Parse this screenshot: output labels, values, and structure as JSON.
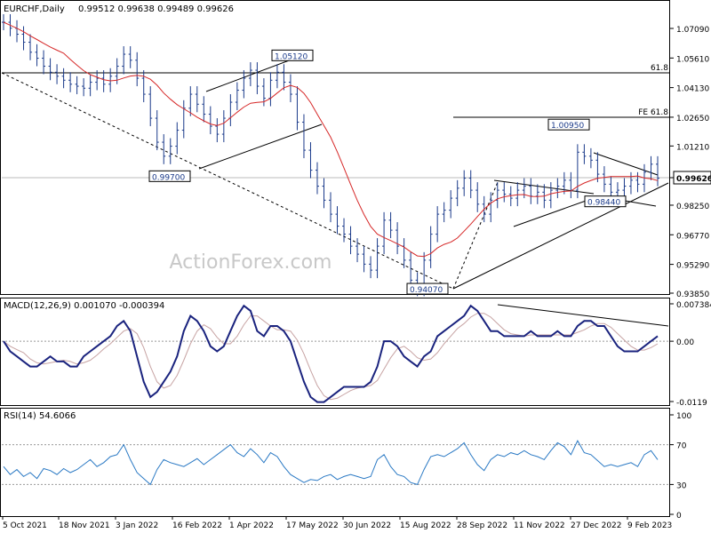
{
  "chart_data": {
    "type": "line",
    "title": "EURCHF,Daily",
    "ohlc": "0.99512 0.99638 0.99489 0.99626",
    "watermark": "ActionForex.com",
    "price_ticks": [
      "1.07090",
      "1.05610",
      "1.04130",
      "1.02650",
      "1.01210",
      "0.99626",
      "0.98250",
      "0.96770",
      "0.95290",
      "0.93850"
    ],
    "price_tick_values": [
      1.0709,
      1.0561,
      1.0413,
      1.0265,
      1.0121,
      0.99626,
      0.9825,
      0.9677,
      0.9529,
      0.9385
    ],
    "last_price": "0.99626",
    "fib_labels": [
      "61.8",
      "FE 61.8"
    ],
    "price_labels": [
      {
        "text": "1.05120",
        "value": 1.0512
      },
      {
        "text": "0.99700",
        "value": 0.997
      },
      {
        "text": "0.94070",
        "value": 0.9407
      },
      {
        "text": "1.00950",
        "value": 1.0095
      },
      {
        "text": "0.98440",
        "value": 0.9844
      }
    ],
    "date_labels": [
      "5 Oct 2021",
      "18 Nov 2021",
      "3 Jan 2022",
      "16 Feb 2022",
      "1 Apr 2022",
      "17 May 2022",
      "30 Jun 2022",
      "15 Aug 2022",
      "28 Sep 2022",
      "11 Nov 2022",
      "27 Dec 2022",
      "9 Feb 2023"
    ],
    "close": [
      1.074,
      1.071,
      1.068,
      1.064,
      1.059,
      1.056,
      1.052,
      1.049,
      1.047,
      1.045,
      1.043,
      1.042,
      1.041,
      1.044,
      1.046,
      1.043,
      1.047,
      1.052,
      1.058,
      1.055,
      1.046,
      1.038,
      1.026,
      1.014,
      1.007,
      1.012,
      1.02,
      1.031,
      1.038,
      1.033,
      1.028,
      1.022,
      1.018,
      1.026,
      1.034,
      1.04,
      1.046,
      1.05,
      1.042,
      1.036,
      1.045,
      1.049,
      1.044,
      1.038,
      1.024,
      1.01,
      1.0,
      0.992,
      0.985,
      0.978,
      0.972,
      0.968,
      0.962,
      0.958,
      0.953,
      0.95,
      0.962,
      0.975,
      0.97,
      0.962,
      0.955,
      0.945,
      0.941,
      0.955,
      0.968,
      0.978,
      0.98,
      0.986,
      0.991,
      0.996,
      0.99,
      0.983,
      0.978,
      0.985,
      0.99,
      0.988,
      0.986,
      0.99,
      0.992,
      0.987,
      0.989,
      0.985,
      0.99,
      0.992,
      0.995,
      0.99,
      1.009,
      1.007,
      1.005,
      0.998,
      0.993,
      0.989,
      0.99,
      0.992,
      0.995,
      0.993,
      0.999,
      1.003,
      0.996
    ],
    "macd": {
      "label": "MACD(12,26,9) 0.001070 -0.000394",
      "ticks": [
        "0.007384",
        "0.00",
        "-0.0119"
      ],
      "tick_values": [
        0.007384,
        0.0,
        -0.0119
      ],
      "main": [
        0.0,
        -0.002,
        -0.003,
        -0.004,
        -0.005,
        -0.005,
        -0.004,
        -0.003,
        -0.004,
        -0.004,
        -0.005,
        -0.005,
        -0.003,
        -0.002,
        -0.001,
        0.0,
        0.001,
        0.003,
        0.004,
        0.002,
        -0.003,
        -0.008,
        -0.011,
        -0.01,
        -0.008,
        -0.006,
        -0.003,
        0.002,
        0.005,
        0.004,
        0.002,
        -0.001,
        -0.002,
        -0.001,
        0.002,
        0.005,
        0.007,
        0.006,
        0.002,
        0.001,
        0.003,
        0.003,
        0.002,
        0.0,
        -0.004,
        -0.008,
        -0.011,
        -0.012,
        -0.012,
        -0.011,
        -0.01,
        -0.009,
        -0.009,
        -0.009,
        -0.009,
        -0.008,
        -0.005,
        0.0,
        0.0,
        -0.001,
        -0.003,
        -0.004,
        -0.005,
        -0.003,
        -0.002,
        0.001,
        0.002,
        0.003,
        0.004,
        0.005,
        0.007,
        0.006,
        0.004,
        0.002,
        0.002,
        0.001,
        0.001,
        0.001,
        0.001,
        0.002,
        0.001,
        0.001,
        0.001,
        0.002,
        0.001,
        0.001,
        0.003,
        0.004,
        0.004,
        0.003,
        0.003,
        0.001,
        -0.001,
        -0.002,
        -0.002,
        -0.002,
        -0.001,
        0.0,
        0.001
      ]
    },
    "rsi": {
      "label": "RSI(14) 54.6066",
      "ticks": [
        "100",
        "70",
        "30",
        "0"
      ],
      "tick_values": [
        100,
        70,
        30,
        0
      ],
      "values": [
        48,
        40,
        45,
        38,
        42,
        36,
        46,
        44,
        40,
        46,
        42,
        45,
        50,
        55,
        48,
        52,
        58,
        60,
        70,
        55,
        42,
        36,
        30,
        45,
        55,
        52,
        50,
        48,
        52,
        56,
        50,
        55,
        60,
        65,
        70,
        62,
        58,
        66,
        60,
        52,
        62,
        58,
        48,
        40,
        36,
        32,
        35,
        34,
        38,
        40,
        35,
        38,
        40,
        38,
        36,
        38,
        55,
        60,
        48,
        40,
        38,
        32,
        30,
        45,
        58,
        60,
        58,
        62,
        66,
        72,
        60,
        50,
        44,
        55,
        60,
        58,
        62,
        60,
        64,
        60,
        58,
        55,
        64,
        72,
        68,
        60,
        74,
        62,
        60,
        54,
        48,
        50,
        48,
        50,
        52,
        48,
        60,
        64,
        55
      ]
    }
  }
}
